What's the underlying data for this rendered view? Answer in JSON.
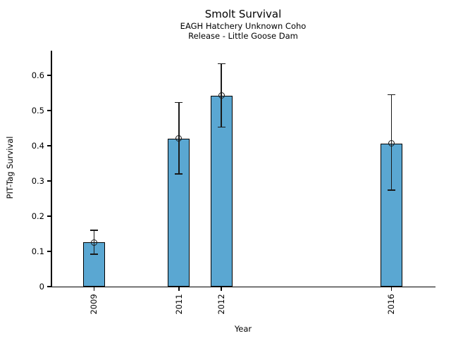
{
  "figure": {
    "title": "Smolt Survival",
    "subtitle_line1": "EAGH Hatchery Unknown Coho",
    "subtitle_line2": "Release - Little Goose Dam"
  },
  "chart_data": {
    "type": "bar",
    "title": "Smolt Survival",
    "subtitle": [
      "EAGH Hatchery Unknown Coho",
      "Release - Little Goose Dam"
    ],
    "xlabel": "Year",
    "ylabel": "PIT-Tag Survival",
    "categories": [
      "2009",
      "2011",
      "2012",
      "2016"
    ],
    "x_numeric": [
      2009,
      2011,
      2012,
      2016
    ],
    "values": [
      0.126,
      0.421,
      0.543,
      0.407
    ],
    "error_upper": [
      0.16,
      0.523,
      0.633,
      0.545
    ],
    "error_lower": [
      0.092,
      0.32,
      0.453,
      0.274
    ],
    "ylim": [
      0,
      0.67
    ],
    "xlim": [
      2008,
      2017
    ],
    "yticks": [
      0,
      0.1,
      0.2,
      0.3,
      0.4,
      0.5,
      0.6
    ],
    "ytick_labels": [
      "0",
      "0.1",
      "0.2",
      "0.3",
      "0.4",
      "0.5",
      "0.6"
    ],
    "grid": false,
    "legend": false,
    "marker": "open-circle",
    "bar_color": "#5aa7d2",
    "edge_color": "#000000",
    "text_color": "#000000"
  }
}
